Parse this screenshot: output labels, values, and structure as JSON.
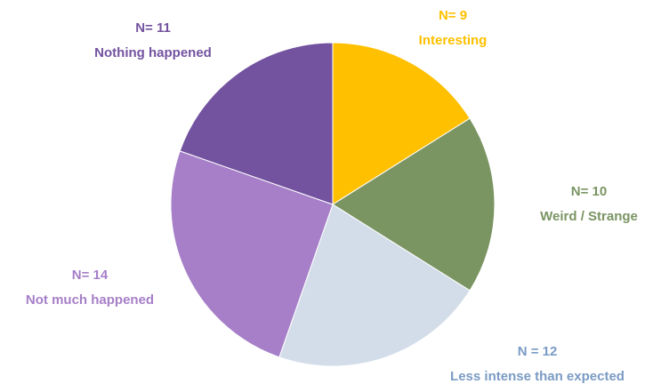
{
  "chart_data": {
    "type": "pie",
    "categories": [
      "Interesting",
      "Weird / Strange",
      "Less intense than expected",
      "Not much happened",
      "Nothing happened"
    ],
    "values": [
      9,
      10,
      12,
      14,
      11
    ],
    "value_labels": [
      "N= 9",
      "N= 10",
      "N = 12",
      "N= 14",
      "N= 11"
    ],
    "colors": [
      "#ffc000",
      "#7a9462",
      "#d3dde9",
      "#a67fc8",
      "#7352a0"
    ],
    "label_colors": [
      "#ffc000",
      "#7a9462",
      "#7a9bc4",
      "#a67fc8",
      "#7352a0"
    ]
  }
}
